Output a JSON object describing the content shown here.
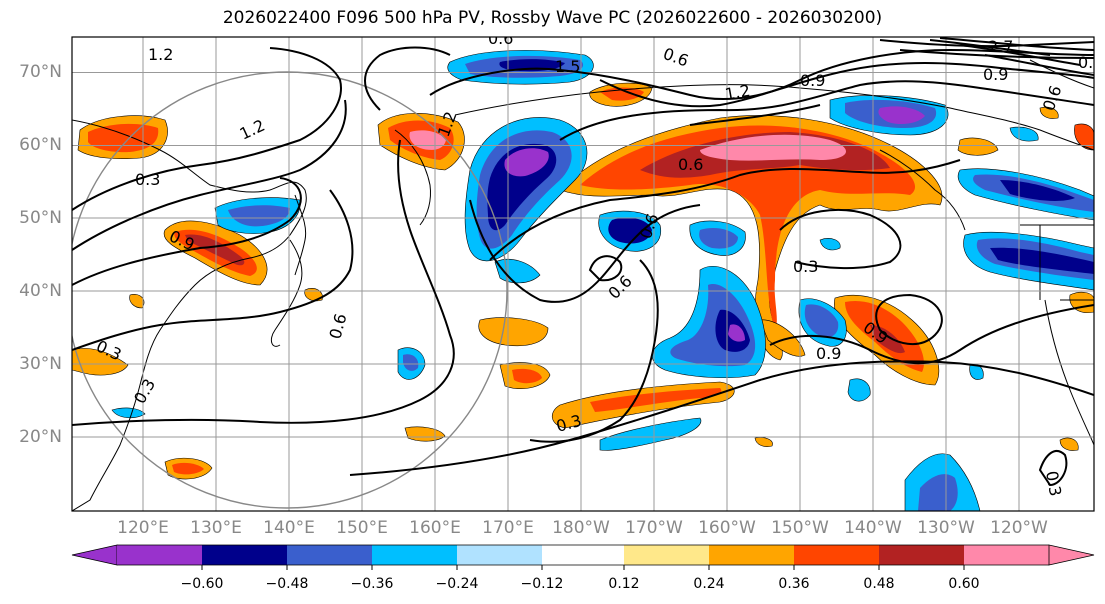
{
  "title": "2026022400 F096 500 hPa PV, Rossby Wave PC (2026022600 - 2026030200)",
  "map": {
    "lat_labels": [
      "70°N",
      "60°N",
      "50°N",
      "40°N",
      "30°N",
      "20°N"
    ],
    "lon_labels": [
      "120°E",
      "130°E",
      "140°E",
      "150°E",
      "160°E",
      "170°E",
      "180°W",
      "170°W",
      "160°W",
      "150°W",
      "140°W",
      "130°W",
      "120°W"
    ],
    "contour_labels": [
      "1.2",
      "0.6",
      "0.6",
      "1.5",
      "0.9",
      "1.2",
      "0.9",
      "1.2",
      "1.2",
      "0.6",
      "0.3",
      "0.6",
      "0.6",
      "0.9",
      "0.3",
      "0.6",
      "0.9",
      "0.3",
      "0.3",
      "0.3",
      "2.7",
      "0.6",
      "0.3",
      "0.9",
      "0.3"
    ]
  },
  "colorbar": {
    "ticks": [
      "−0.60",
      "−0.48",
      "−0.36",
      "−0.24",
      "−0.12",
      "0.12",
      "0.24",
      "0.36",
      "0.48",
      "0.60"
    ],
    "colors": [
      "#9932cc",
      "#00008b",
      "#3a5fcd",
      "#00bfff",
      "#b0e2ff",
      "#ffffff",
      "#ffe88a",
      "#ffa500",
      "#ff4500",
      "#b22222",
      "#ff88aa"
    ]
  }
}
